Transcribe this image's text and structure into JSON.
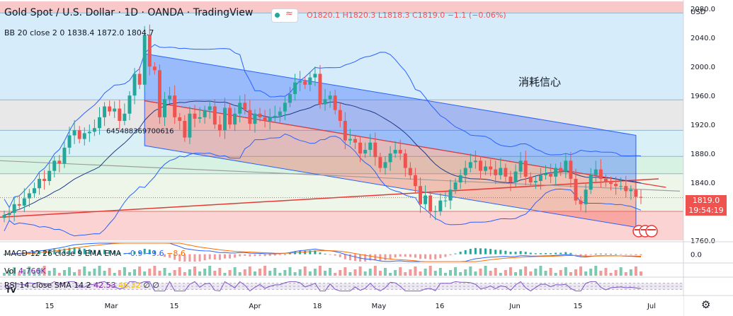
{
  "header": {
    "title": "Gold Spot / U.S. Dollar · 1D · OANDA · TradingView",
    "ohlc": {
      "o": "O1820.1",
      "h": "H1820.3",
      "l": "L1818.3",
      "c": "C1819.0",
      "chg": "−1.1 (−0.06%)"
    }
  },
  "indicators": {
    "bb": {
      "label": "BB 20 close 2 0",
      "v1": "1838.4",
      "v2": "1872.0",
      "v3": "1804.7"
    },
    "macd": {
      "label": "MACD 12 26 close 9 EMA EMA",
      "v1": "−0.9",
      "v2": "−9.6",
      "v3": "−8.6"
    },
    "vol": {
      "label": "Vol",
      "v": "4.766K"
    },
    "rsi": {
      "label": "RSI 14 close SMA 14 2",
      "v1": "42.53",
      "v2": "46.32",
      "v3": "∅ ∅"
    }
  },
  "annotation": "消耗信心",
  "fib_label": "645488369700616",
  "price_axis": {
    "currency": "USD",
    "last_price": "1819.0",
    "countdown": "19:54:19",
    "macd_zero": "0.0"
  },
  "colors": {
    "up": "#26a69a",
    "down": "#ef5350",
    "channel_up": "#2962ff",
    "channel_down": "#f44336"
  },
  "chart_data": {
    "type": "candlestick",
    "title": "Gold Spot / U.S. Dollar · 1D · OANDA · TradingView",
    "y_ticks": [
      1760,
      1800,
      1840,
      1880,
      1920,
      1960,
      2000,
      2040,
      2080
    ],
    "ylim": [
      1760,
      2090
    ],
    "x_ticks": [
      "15",
      "Mar",
      "15",
      "Apr",
      "18",
      "May",
      "16",
      "Jun",
      "15",
      "Jul"
    ],
    "closes": [
      1795,
      1798,
      1810,
      1808,
      1818,
      1825,
      1832,
      1845,
      1842,
      1856,
      1870,
      1866,
      1888,
      1905,
      1912,
      1900,
      1908,
      1910,
      1915,
      1930,
      1945,
      1938,
      1942,
      1925,
      1935,
      1960,
      1990,
      1975,
      2044,
      2000,
      1995,
      1930,
      1955,
      1960,
      1930,
      1925,
      1902,
      1935,
      1928,
      1930,
      1940,
      1945,
      1920,
      1912,
      1943,
      1920,
      1935,
      1950,
      1940,
      1921,
      1935,
      1930,
      1925,
      1930,
      1932,
      1938,
      1950,
      1962,
      1978,
      1980,
      1975,
      1985,
      1990,
      1948,
      1955,
      1960,
      1940,
      1925,
      1898,
      1900,
      1895,
      1880,
      1885,
      1895,
      1875,
      1860,
      1868,
      1880,
      1885,
      1880,
      1860,
      1850,
      1835,
      1810,
      1822,
      1800,
      1800,
      1815,
      1815,
      1830,
      1840,
      1850,
      1860,
      1868,
      1870,
      1856,
      1862,
      1858,
      1850,
      1860,
      1848,
      1840,
      1855,
      1870,
      1848,
      1840,
      1842,
      1850,
      1852,
      1848,
      1860,
      1855,
      1870,
      1845,
      1815,
      1810,
      1830,
      1850,
      1858,
      1845,
      1840,
      1838,
      1835,
      1835,
      1828,
      1830,
      1820,
      1819
    ],
    "macd_range": [
      -20,
      30
    ],
    "rsi_range": [
      0,
      100
    ],
    "last": 1819.0
  }
}
